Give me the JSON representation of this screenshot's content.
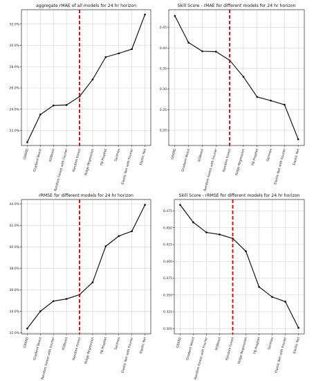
{
  "colors": {
    "line": "#000000",
    "marker": "#000000",
    "vline": "#cc0000",
    "grid": "#d0d0d0",
    "frame": "#000000"
  },
  "chart_data": [
    {
      "type": "line",
      "title": "aggregate rMAE of all models for 24 hr horizon",
      "categories": [
        "GEKKO",
        "Gradient Boost",
        "XGBoost",
        "Random Forest with Fourier",
        "Random Forest",
        "Ridge Regression",
        "FB Prophet",
        "Sarimax",
        "Elastic Net with Fourier",
        "Elastic Net"
      ],
      "values": [
        20.9,
        23.5,
        24.35,
        24.4,
        25.2,
        26.8,
        28.9,
        29.25,
        29.65,
        32.9
      ],
      "yticks": [
        "22.0%",
        "24.0%",
        "26.0%",
        "28.0%",
        "30.0%",
        "32.0%"
      ],
      "ytick_values": [
        22,
        24,
        26,
        28,
        30,
        32
      ],
      "ylim": [
        20.6,
        33.35
      ],
      "vline_category": "Random Forest",
      "grid": true
    },
    {
      "type": "line",
      "title": "Skill Score - rMAE for different models for 24 hr horizon",
      "categories": [
        "GEKKO",
        "Gradient Boost",
        "XGBoost",
        "Random Forest with Fourier",
        "Random Forest",
        "Ridge Regression",
        "FB Prophet",
        "Sarimax",
        "Elastic Net with Fourier",
        "Elastic Net"
      ],
      "values": [
        0.478,
        0.413,
        0.392,
        0.391,
        0.37,
        0.33,
        0.281,
        0.272,
        0.262,
        0.178
      ],
      "yticks": [
        "0.20",
        "0.25",
        "0.30",
        "0.35",
        "0.40",
        "0.45"
      ],
      "ytick_values": [
        0.2,
        0.25,
        0.3,
        0.35,
        0.4,
        0.45
      ],
      "ylim": [
        0.163,
        0.493
      ],
      "vline_category": "Random Forest",
      "grid": true
    },
    {
      "type": "line",
      "title": "rRMSE for different models for 24 hr horizon",
      "categories": [
        "GEKKO",
        "Gradient Boost",
        "Random Forest with Fourier",
        "XGBoost",
        "Random Forest",
        "Ridge Regression",
        "FB Prophet",
        "Sarimax",
        "Elastic Net with Fourier",
        "Elastic Net"
      ],
      "values": [
        32.4,
        34.0,
        34.95,
        35.15,
        35.55,
        36.7,
        40.05,
        41.0,
        41.45,
        43.9
      ],
      "yticks": [
        "32.0%",
        "34.0%",
        "36.0%",
        "38.0%",
        "40.0%",
        "42.0%",
        "44.0%"
      ],
      "ytick_values": [
        32,
        34,
        36,
        38,
        40,
        42,
        44
      ],
      "ylim": [
        31.9,
        44.4
      ],
      "vline_category": "Random Forest",
      "grid": true
    },
    {
      "type": "line",
      "title": "Skill Score - rRMSE for different models for 24 hr horizon",
      "categories": [
        "GEKKO",
        "Gradient Boost",
        "Random Forest with Fourier",
        "XGBoost",
        "Random Forest",
        "Ridge Regression",
        "FB Prophet",
        "Sarimax",
        "Elastic Net with Fourier",
        "Elastic Net"
      ],
      "values": [
        0.484,
        0.458,
        0.443,
        0.44,
        0.434,
        0.415,
        0.362,
        0.347,
        0.34,
        0.301
      ],
      "yticks": [
        "0.300",
        "0.325",
        "0.350",
        "0.375",
        "0.400",
        "0.425",
        "0.450",
        "0.475"
      ],
      "ytick_values": [
        0.3,
        0.325,
        0.35,
        0.375,
        0.4,
        0.425,
        0.45,
        0.475
      ],
      "ylim": [
        0.292,
        0.492
      ],
      "vline_category": "Random Forest",
      "grid": true
    }
  ]
}
